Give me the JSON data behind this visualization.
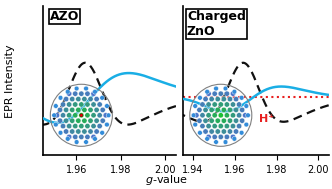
{
  "left_panel": {
    "title": "AZO",
    "xlim": [
      2.0,
      1.94
    ],
    "xticks": [
      2.0,
      1.98,
      1.96
    ],
    "xlabel": "g-value"
  },
  "right_panel": {
    "title": "Charged\nZnO",
    "xlim": [
      2.0,
      1.94
    ],
    "xticks": [
      2.0,
      1.98,
      1.96,
      1.94
    ],
    "xlabel": "g-value",
    "hp_label": "H⁺"
  },
  "ylabel": "EPR Intensity",
  "blue_color": "#1aaee5",
  "dashed_color": "#111111",
  "red_color": "#e82020",
  "background": "#ffffff",
  "nanocrystal_image": true
}
